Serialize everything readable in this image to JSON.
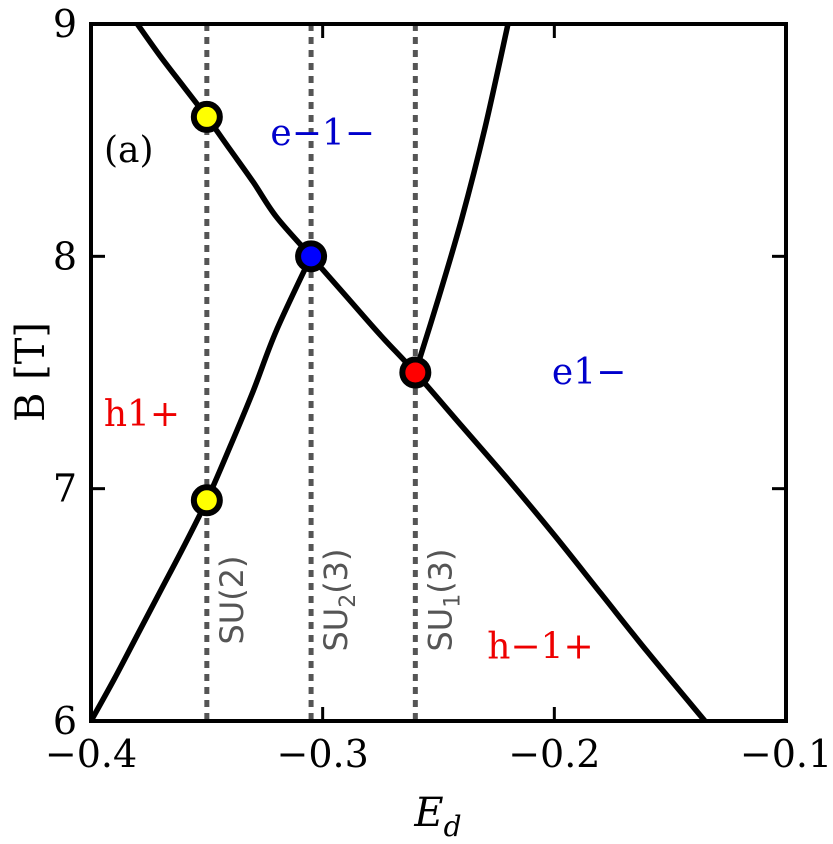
{
  "chart_data": {
    "type": "line",
    "xlabel_main": "E",
    "xlabel_sub": "d",
    "ylabel": "B [T]",
    "xlim": [
      -0.4,
      -0.1
    ],
    "ylim": [
      6,
      9
    ],
    "xticks": [
      -0.4,
      -0.3,
      -0.2,
      -0.1
    ],
    "xtick_labels": [
      "−0.4",
      "−0.3",
      "−0.2",
      "−0.1"
    ],
    "yticks": [
      6,
      7,
      8,
      9
    ],
    "ytick_labels": [
      "6",
      "7",
      "8",
      "9"
    ],
    "panel_label": "(a)",
    "series": [
      {
        "x": [
          -0.38,
          -0.37,
          -0.36,
          -0.35,
          -0.34,
          -0.33,
          -0.32,
          -0.305,
          -0.29,
          -0.275,
          -0.26,
          -0.24,
          -0.22,
          -0.2,
          -0.18,
          -0.16,
          -0.135
        ],
        "y": [
          9.0,
          8.86,
          8.73,
          8.6,
          8.46,
          8.32,
          8.17,
          8.0,
          7.83,
          7.66,
          7.5,
          7.27,
          7.04,
          6.8,
          6.55,
          6.3,
          6.0
        ],
        "color": "#000000"
      },
      {
        "x": [
          -0.4,
          -0.39,
          -0.38,
          -0.37,
          -0.36,
          -0.35,
          -0.34,
          -0.33,
          -0.32,
          -0.305
        ],
        "y": [
          6.0,
          6.18,
          6.37,
          6.56,
          6.75,
          6.95,
          7.18,
          7.42,
          7.68,
          8.0
        ],
        "color": "#000000"
      },
      {
        "x": [
          -0.26,
          -0.25,
          -0.24,
          -0.23,
          -0.22
        ],
        "y": [
          7.5,
          7.82,
          8.16,
          8.55,
          9.0
        ],
        "color": "#000000"
      }
    ],
    "vlines": [
      {
        "x": -0.35,
        "label_main": "SU(2)",
        "label_sub": ""
      },
      {
        "x": -0.305,
        "label_main": "SU",
        "label_sub": "2",
        "label_tail": "(3)"
      },
      {
        "x": -0.26,
        "label_main": "SU",
        "label_sub": "1",
        "label_tail": "(3)"
      }
    ],
    "points": [
      {
        "x": -0.35,
        "y": 8.6,
        "color": "#ffff00"
      },
      {
        "x": -0.305,
        "y": 8.0,
        "color": "#0000ff"
      },
      {
        "x": -0.26,
        "y": 7.5,
        "color": "#ff0000"
      },
      {
        "x": -0.35,
        "y": 6.95,
        "color": "#ffff00"
      }
    ],
    "regions": [
      {
        "text": "e−1−",
        "x": -0.3,
        "y": 8.48,
        "color": "#0000cc"
      },
      {
        "text": "e1−",
        "x": -0.185,
        "y": 7.45,
        "color": "#0000cc"
      },
      {
        "text": "h1+",
        "x": -0.378,
        "y": 7.27,
        "color": "#ee0000"
      },
      {
        "text": "h−1+",
        "x": -0.206,
        "y": 6.27,
        "color": "#ee0000"
      }
    ]
  }
}
